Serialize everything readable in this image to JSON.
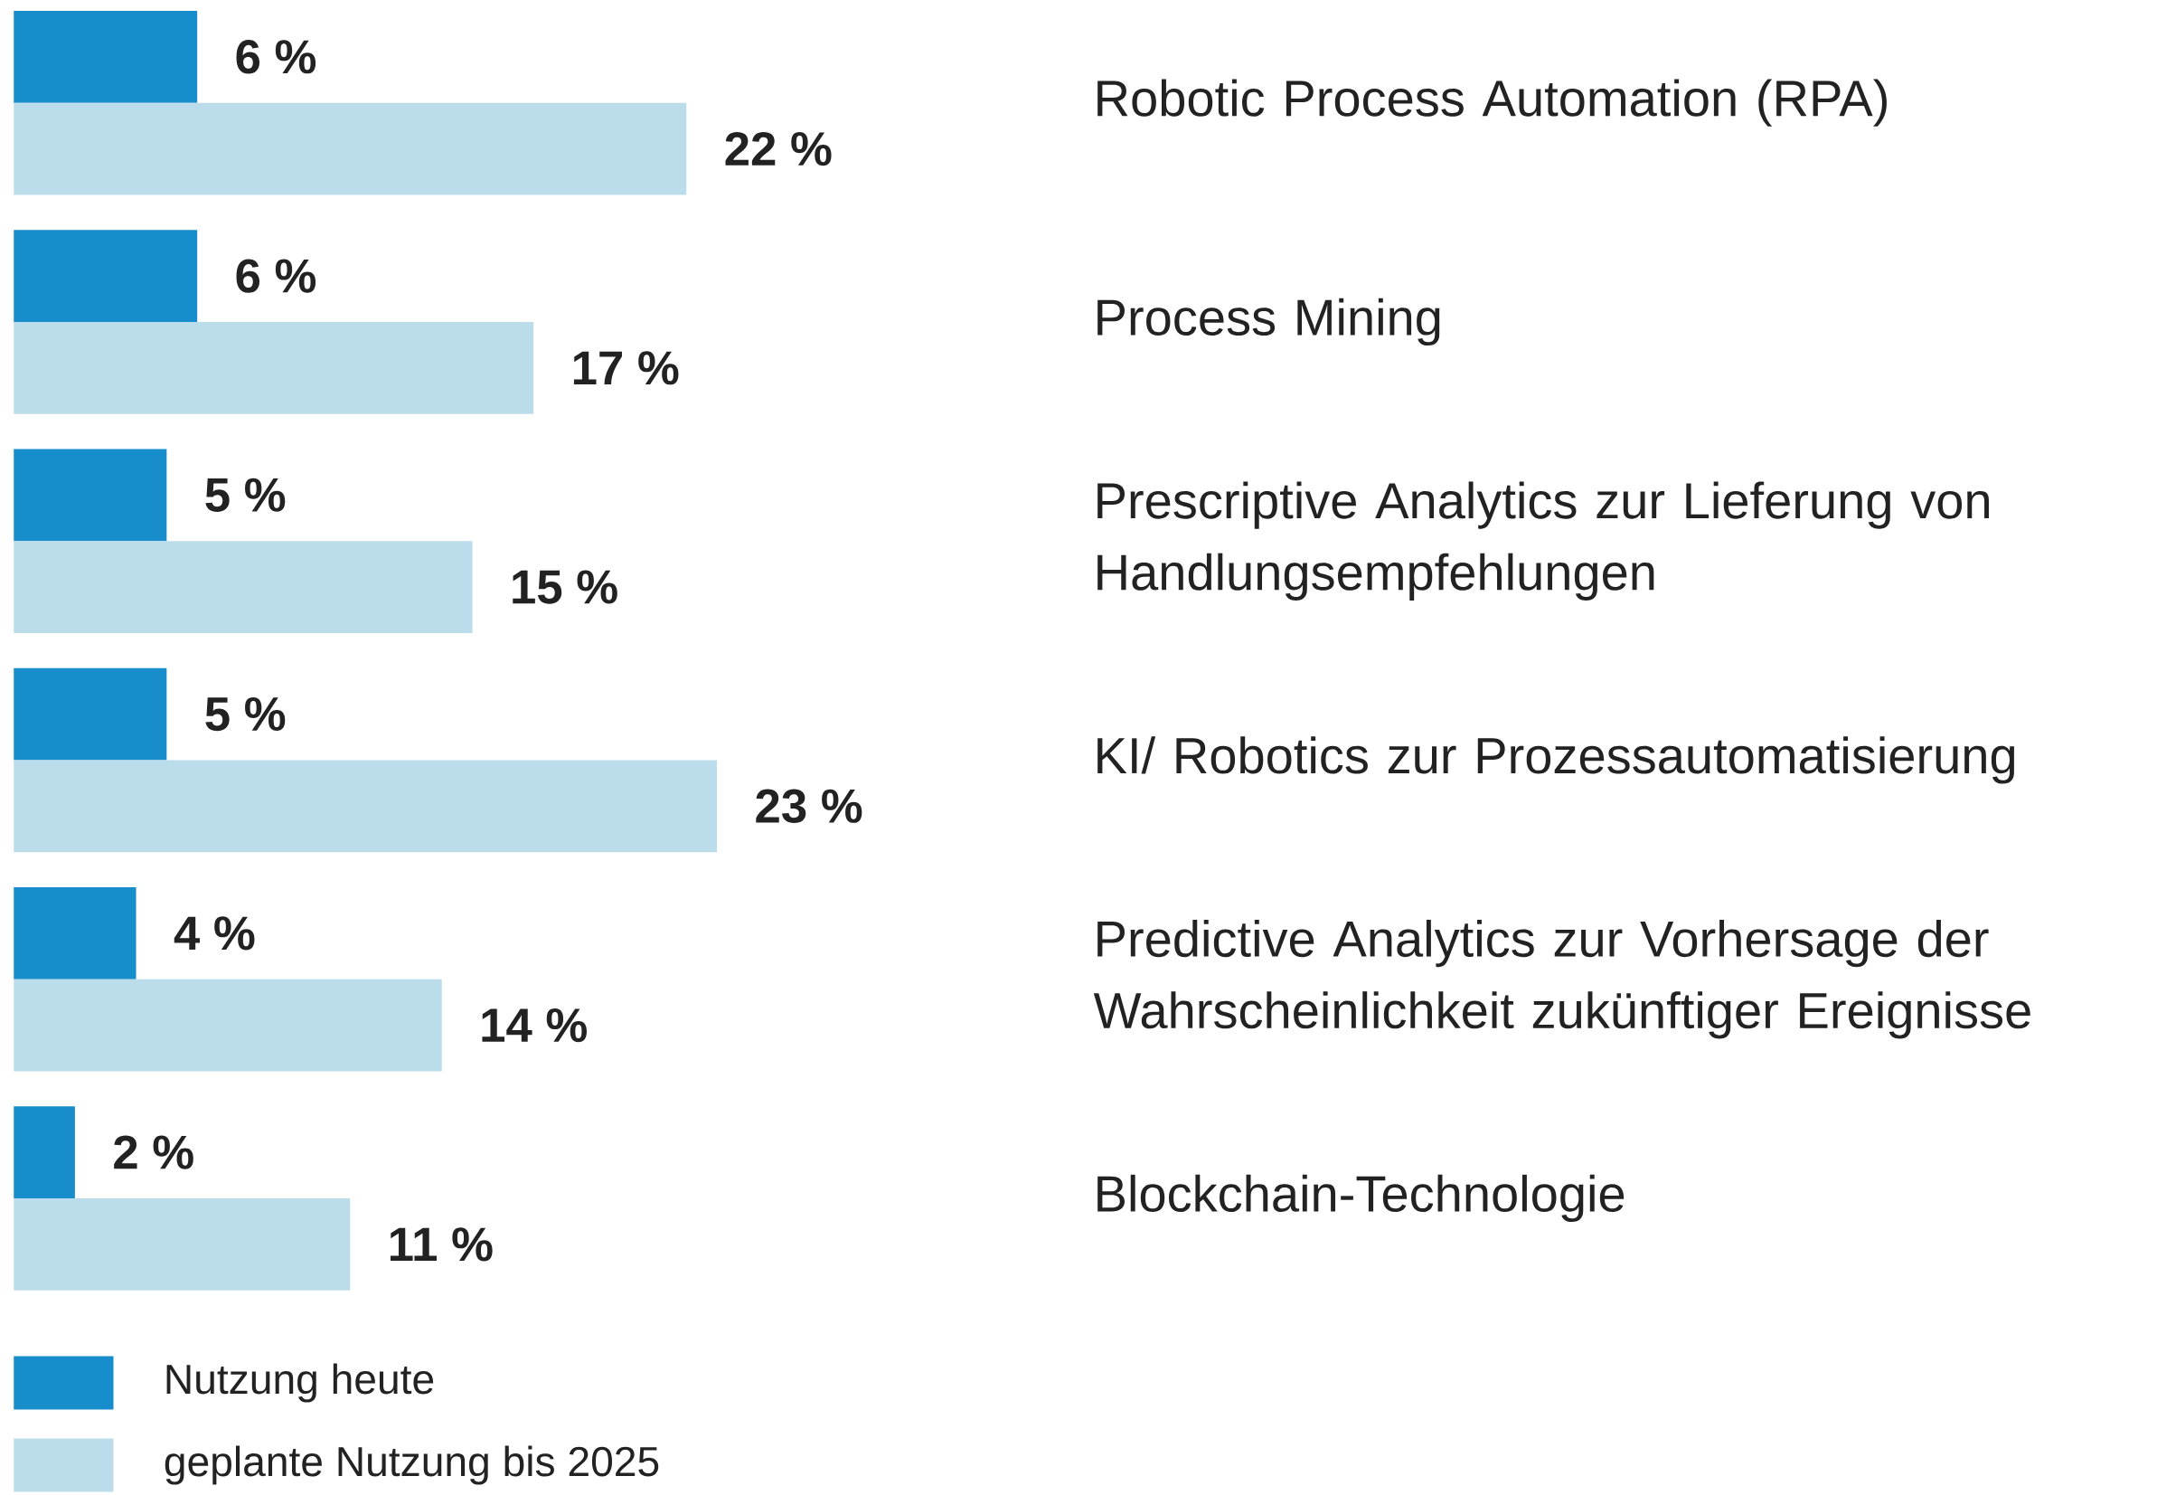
{
  "chart_data": {
    "type": "bar",
    "orientation": "horizontal",
    "categories": [
      "Robotic Process Automation (RPA)",
      "Process Mining",
      "Prescriptive Analytics zur Lieferung von Handlungsempfehlungen",
      "KI/ Robotics zur Prozessautomatisierung",
      "Predictive Analytics zur Vorhersage der Wahrscheinlichkeit zukünftiger Ereignisse",
      "Blockchain-Technologie"
    ],
    "series": [
      {
        "name": "Nutzung heute",
        "color": "#178dcc",
        "values": [
          6,
          6,
          5,
          5,
          4,
          2
        ],
        "value_labels": [
          "6 %",
          "6 %",
          "5 %",
          "5 %",
          "4 %",
          "2 %"
        ]
      },
      {
        "name": "geplante Nutzung bis 2025",
        "color": "#bbdcea",
        "values": [
          22,
          17,
          15,
          23,
          14,
          11
        ],
        "value_labels": [
          "22 %",
          "17 %",
          "15 %",
          "23 %",
          "14 %",
          "11 %"
        ]
      }
    ],
    "legend": "bottom left"
  }
}
